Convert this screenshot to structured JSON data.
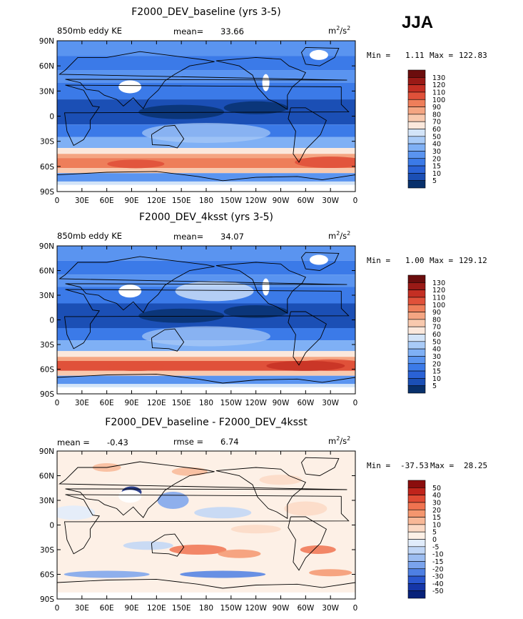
{
  "season": "JJA",
  "unit_base": "m",
  "unit_sup1": "2",
  "unit_mid": "/s",
  "unit_sup2": "2",
  "chart_data": [
    {
      "type": "heatmap",
      "title": "F2000_DEV_baseline (yrs 3-5)",
      "left_label": "850mb eddy KE",
      "stat_label": "mean=",
      "stat_value": "33.66",
      "min_label": "Min =",
      "min_value": "1.11",
      "max_label": "Max =",
      "max_value": "122.83",
      "colorbar_levels": [
        "5",
        "10",
        "15",
        "20",
        "30",
        "40",
        "50",
        "60",
        "70",
        "80",
        "90",
        "100",
        "110",
        "120",
        "130"
      ],
      "colorbar_colors": [
        "#08306b",
        "#1b4fb5",
        "#2a62d6",
        "#3b7ae8",
        "#5a94f0",
        "#7fb0f5",
        "#a9cbf7",
        "#d3e4f8",
        "#fbe8dc",
        "#f8c9ae",
        "#f4a582",
        "#ee7e5a",
        "#e0513a",
        "#c42f23",
        "#9a1a16",
        "#6b0d0d"
      ],
      "ylim": [
        -90,
        90
      ],
      "y_ticks": [
        "90N",
        "60N",
        "30N",
        "0",
        "30S",
        "60S",
        "90S"
      ],
      "x_ticks": [
        "0",
        "30E",
        "60E",
        "90E",
        "120E",
        "150E",
        "180",
        "150W",
        "120W",
        "90W",
        "60W",
        "30W",
        "0"
      ]
    },
    {
      "type": "heatmap",
      "title": "F2000_DEV_4ksst (yrs 3-5)",
      "left_label": "850mb eddy KE",
      "stat_label": "mean=",
      "stat_value": "34.07",
      "min_label": "Min =",
      "min_value": "1.00",
      "max_label": "Max =",
      "max_value": "129.12",
      "colorbar_levels": [
        "5",
        "10",
        "15",
        "20",
        "30",
        "40",
        "50",
        "60",
        "70",
        "80",
        "90",
        "100",
        "110",
        "120",
        "130"
      ],
      "colorbar_colors": [
        "#08306b",
        "#1b4fb5",
        "#2a62d6",
        "#3b7ae8",
        "#5a94f0",
        "#7fb0f5",
        "#a9cbf7",
        "#d3e4f8",
        "#fbe8dc",
        "#f8c9ae",
        "#f4a582",
        "#ee7e5a",
        "#e0513a",
        "#c42f23",
        "#9a1a16",
        "#6b0d0d"
      ],
      "ylim": [
        -90,
        90
      ],
      "y_ticks": [
        "90N",
        "60N",
        "30N",
        "0",
        "30S",
        "60S",
        "90S"
      ],
      "x_ticks": [
        "0",
        "30E",
        "60E",
        "90E",
        "120E",
        "150E",
        "180",
        "150W",
        "120W",
        "90W",
        "60W",
        "30W",
        "0"
      ]
    },
    {
      "type": "heatmap",
      "title": "F2000_DEV_baseline - F2000_DEV_4ksst",
      "left_label": "mean =",
      "left_value": "-0.43",
      "stat_label": "rmse =",
      "stat_value": "6.74",
      "min_label": "Min =",
      "min_value": "-37.53",
      "max_label": "Max =",
      "max_value": "28.25",
      "colorbar_levels": [
        "50",
        "40",
        "30",
        "20",
        "15",
        "10",
        "5",
        "0",
        "-5",
        "-10",
        "-15",
        "-20",
        "-30",
        "-40",
        "-50"
      ],
      "colorbar_colors": [
        "#8b0d0d",
        "#c0241b",
        "#e04b33",
        "#f07350",
        "#f4966e",
        "#f8b897",
        "#fbd9c4",
        "#fdf0e6",
        "#e1ecfb",
        "#c0d6f6",
        "#9cbdf1",
        "#7aa3ec",
        "#4e7fe3",
        "#2a57cf",
        "#1536a8",
        "#07217a"
      ],
      "ylim": [
        -90,
        90
      ],
      "y_ticks": [
        "90N",
        "60N",
        "30N",
        "0",
        "30S",
        "60S",
        "90S"
      ],
      "x_ticks": [
        "0",
        "30E",
        "60E",
        "90E",
        "120E",
        "150E",
        "180",
        "150W",
        "120W",
        "90W",
        "60W",
        "30W",
        "0"
      ]
    }
  ]
}
